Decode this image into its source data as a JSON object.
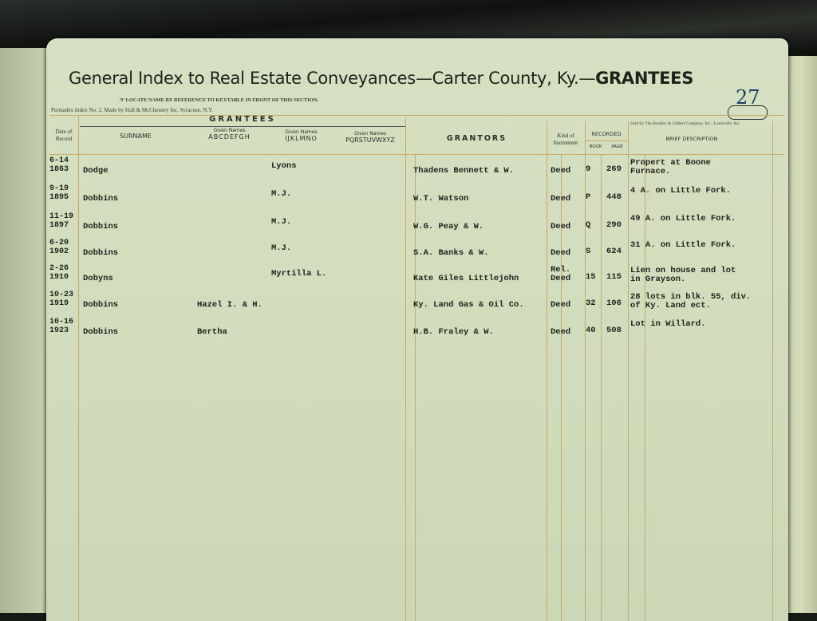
{
  "header": {
    "title_main": "General Index to Real Estate Conveyances—Carter County, Ky.—",
    "title_bold": "GRANTEES",
    "page_number": "27",
    "subtitle": "☞ LOCATE NAME BY REFERENCE TO KEYTABLE IN FRONT OF THIS SECTION.",
    "maker": "Permadex Index No. 2. Made by Hall & McChesney Inc, Syracuse, N.Y.",
    "seller": "Sold by The Bradley & Gilbert Company, Inc., Louisville, Ky."
  },
  "columns": {
    "date": "Date of Record",
    "grantees": "GRANTEES",
    "surname": "SURNAME",
    "given_label": "Given Names",
    "given1": "ABCDEFGH",
    "given2": "IJKLMNO",
    "given3": "PQRSTUVWXYZ",
    "grantors": "GRANTORS",
    "kind": "Kind of Instrument",
    "recorded": "RECORDED",
    "book": "BOOK",
    "page": "PAGE",
    "description": "BRIEF DESCRIPTION"
  },
  "rows": [
    {
      "date1": "6-14",
      "date2": "1863",
      "surname": "Dodge",
      "g1": "",
      "g2": "Lyons",
      "g3": "",
      "grantor": "Thadens Bennett & W.",
      "kind": "Deed",
      "book": "9",
      "page": "269",
      "desc1": "Propert at Boone",
      "desc2": "Furnace."
    },
    {
      "date1": "9-19",
      "date2": "1895",
      "surname": "Dobbins",
      "g1": "",
      "g2": "M.J.",
      "g3": "",
      "grantor": "W.T. Watson",
      "kind": "Deed",
      "book": "P",
      "page": "448",
      "desc1": "4 A. on Little Fork.",
      "desc2": ""
    },
    {
      "date1": "11-19",
      "date2": "1897",
      "surname": "Dobbins",
      "g1": "",
      "g2": "M.J.",
      "g3": "",
      "grantor": "W.G. Peay & W.",
      "kind": "Deed",
      "book": "Q",
      "page": "290",
      "desc1": "49 A. on Little Fork.",
      "desc2": ""
    },
    {
      "date1": "6-20",
      "date2": "1902",
      "surname": "Dobbins",
      "g1": "",
      "g2": "M.J.",
      "g3": "",
      "grantor": "S.A. Banks & W.",
      "kind": "Deed",
      "book": "S",
      "page": "624",
      "desc1": "31 A. on Little Fork.",
      "desc2": ""
    },
    {
      "date1": "2-26",
      "date2": "1910",
      "surname": "Dobyns",
      "g1": "",
      "g2": "Myrtilla L.",
      "g3": "",
      "grantor": "Kate Giles Littlejohn",
      "kind": "Rel. Deed",
      "book": "15",
      "page": "115",
      "desc1": "Lien on house and lot",
      "desc2": "in Grayson."
    },
    {
      "date1": "10-23",
      "date2": "1919",
      "surname": "Dobbins",
      "g1": "Hazel I. & H.",
      "g2": "",
      "g3": "",
      "grantor": "Ky. Land Gas & Oil Co.",
      "kind": "Deed",
      "book": "32",
      "page": "106",
      "desc1": "28 lots in blk. 55, div.",
      "desc2": "of Ky. Land ect."
    },
    {
      "date1": "10-16",
      "date2": "1923",
      "surname": "Dobbins",
      "g1": "Bertha",
      "g2": "",
      "g3": "",
      "grantor": "H.B. Fraley & W.",
      "kind": "Deed",
      "book": "40",
      "page": "508",
      "desc1": "Lot in Willard.",
      "desc2": ""
    }
  ],
  "colors": {
    "paper": "#d4dfc0",
    "rule": "#c9a86a",
    "ink": "#1e221c",
    "page_number_ink": "#1f3d66"
  }
}
